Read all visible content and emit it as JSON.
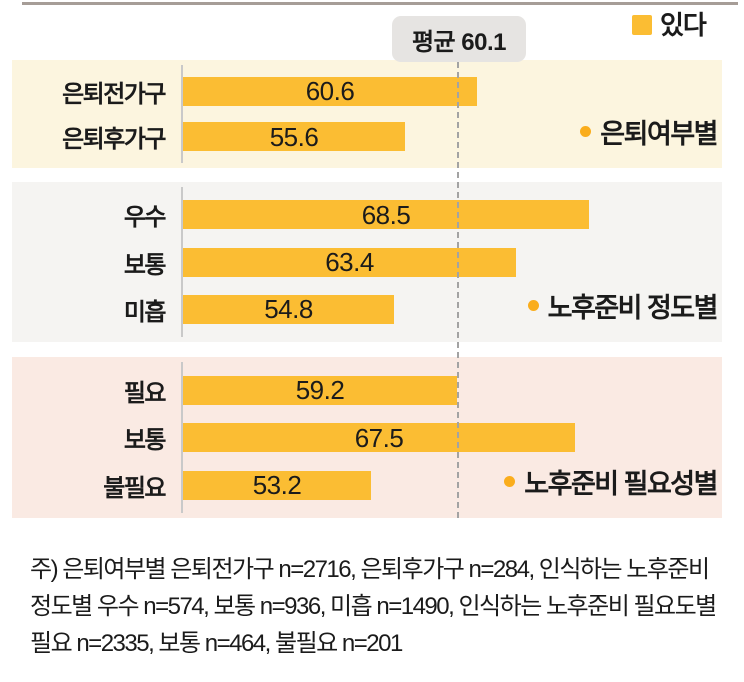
{
  "colors": {
    "bar": "#FBBD33",
    "bullet": "#FAAD1C",
    "average_box_bg": "#E6E4E2",
    "dashed_line": "#A3A3A3",
    "axis_line": "#C9C9C9",
    "top_rule": "#A69D97",
    "text": "#1B1B1B",
    "panel_backgrounds": [
      "#FCF5DF",
      "#F5F4F2",
      "#FAEAE3"
    ]
  },
  "legend": {
    "series_label": "있다"
  },
  "average_badge": {
    "label": "평균 60.1"
  },
  "chart_data": {
    "type": "bar",
    "orientation": "horizontal",
    "series_name": "있다",
    "average": {
      "label": "평균 60.1",
      "value": 60.1
    },
    "groups": [
      {
        "name": "은퇴여부별",
        "bg": "#FCF5DF",
        "bars": [
          {
            "category": "은퇴전가구",
            "value": 60.6
          },
          {
            "category": "은퇴후가구",
            "value": 55.6
          }
        ]
      },
      {
        "name": "노후준비 정도별",
        "bg": "#F5F4F2",
        "bars": [
          {
            "category": "우수",
            "value": 68.5
          },
          {
            "category": "보통",
            "value": 63.4
          },
          {
            "category": "미흡",
            "value": 54.8
          }
        ]
      },
      {
        "name": "노후준비 필요성별",
        "bg": "#FAEAE3",
        "bars": [
          {
            "category": "필요",
            "value": 59.2
          },
          {
            "category": "보통",
            "value": 67.5
          },
          {
            "category": "불필요",
            "value": 53.2
          }
        ]
      }
    ]
  },
  "note": "주) 은퇴여부별 은퇴전가구 n=2716, 은퇴후가구 n=284, 인식하는 노후준비 정도별 우수 n=574, 보통 n=936, 미흡 n=1490, 인식하는 노후준비 필요도별 필요 n=2335, 보통 n=464, 불필요 n=201"
}
